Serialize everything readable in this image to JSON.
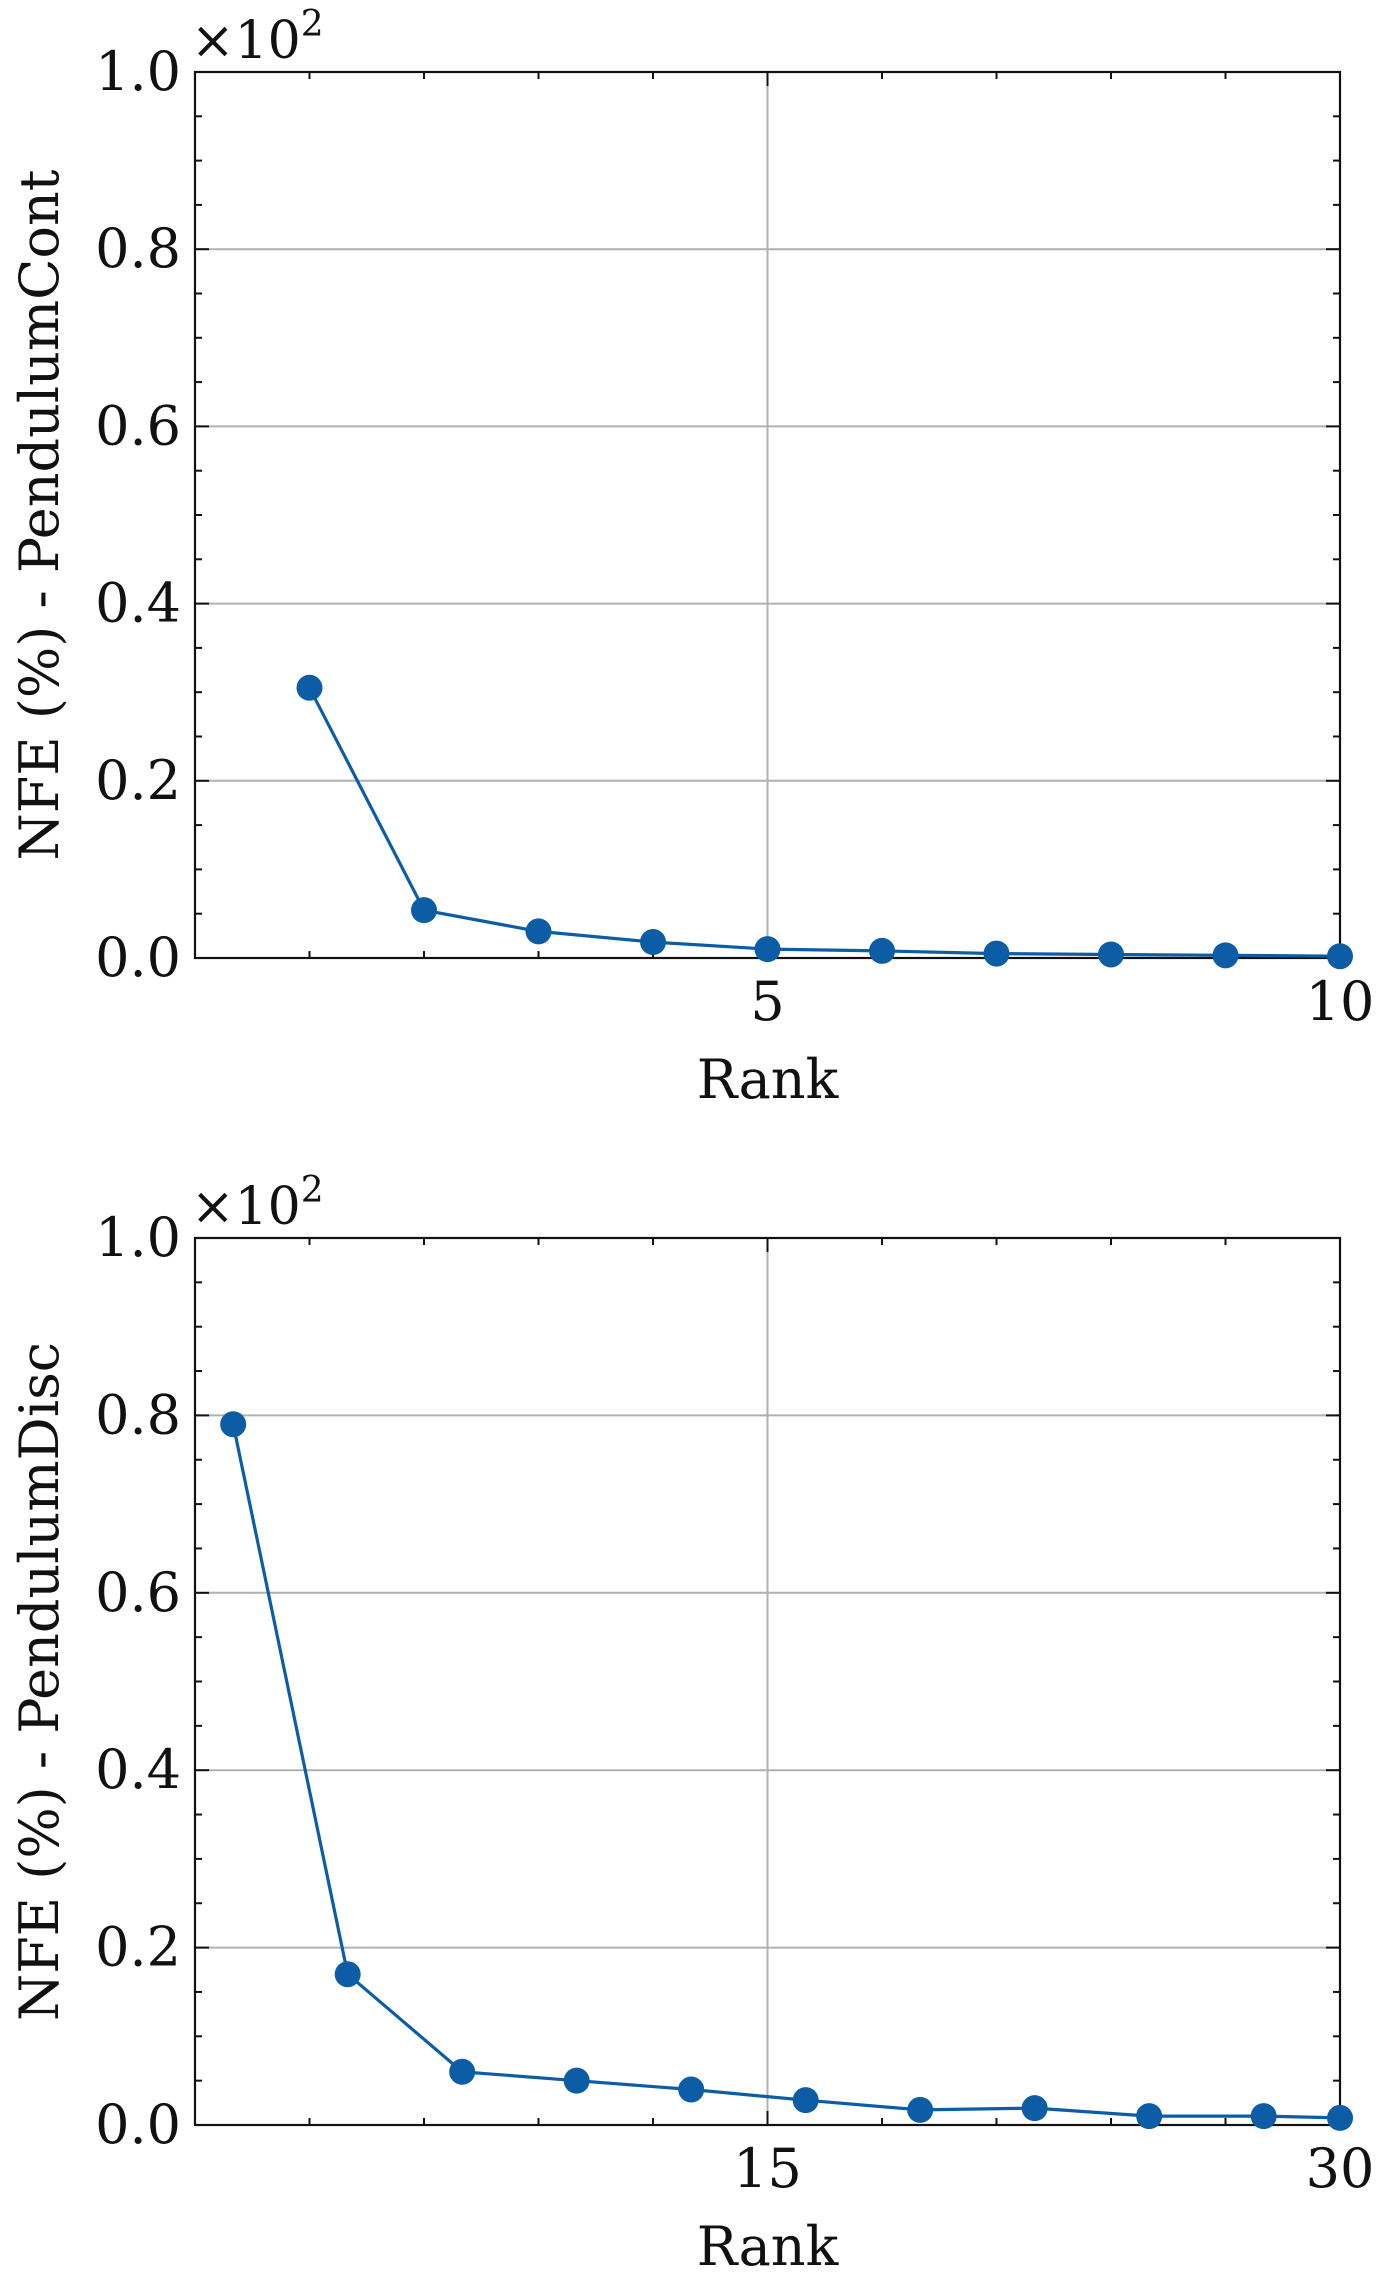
{
  "chart_data": [
    {
      "type": "line",
      "xlabel": "Rank",
      "ylabel": "NFE (%) - PendulumCont",
      "y_scale_label": "×10",
      "y_scale_exp": "2",
      "xlim": [
        0,
        10
      ],
      "ylim": [
        0,
        1.0
      ],
      "xticks": [
        5,
        10
      ],
      "xtick_labels": [
        "5",
        "10"
      ],
      "yticks": [
        0.0,
        0.2,
        0.4,
        0.6,
        0.8,
        1.0
      ],
      "ytick_labels": [
        "0.0",
        "0.2",
        "0.4",
        "0.6",
        "0.8",
        "1.0"
      ],
      "grid": true,
      "color": "#0C5DA5",
      "x": [
        1,
        2,
        3,
        4,
        5,
        6,
        7,
        8,
        9,
        10
      ],
      "y": [
        0.305,
        0.054,
        0.03,
        0.018,
        0.01,
        0.008,
        0.005,
        0.004,
        0.003,
        0.002
      ]
    },
    {
      "type": "line",
      "xlabel": "Rank",
      "ylabel": "NFE (%) - PendulumDisc",
      "y_scale_label": "×10",
      "y_scale_exp": "2",
      "xlim": [
        0,
        30
      ],
      "ylim": [
        0,
        1.0
      ],
      "xticks": [
        15,
        30
      ],
      "xtick_labels": [
        "15",
        "30"
      ],
      "yticks": [
        0.0,
        0.2,
        0.4,
        0.6,
        0.8,
        1.0
      ],
      "ytick_labels": [
        "0.0",
        "0.2",
        "0.4",
        "0.6",
        "0.8",
        "1.0"
      ],
      "grid": true,
      "color": "#0C5DA5",
      "x": [
        1,
        4,
        7,
        10,
        13,
        16,
        19,
        22,
        25,
        28,
        30
      ],
      "y": [
        0.79,
        0.17,
        0.06,
        0.05,
        0.04,
        0.028,
        0.017,
        0.019,
        0.01,
        0.01,
        0.008
      ]
    }
  ]
}
